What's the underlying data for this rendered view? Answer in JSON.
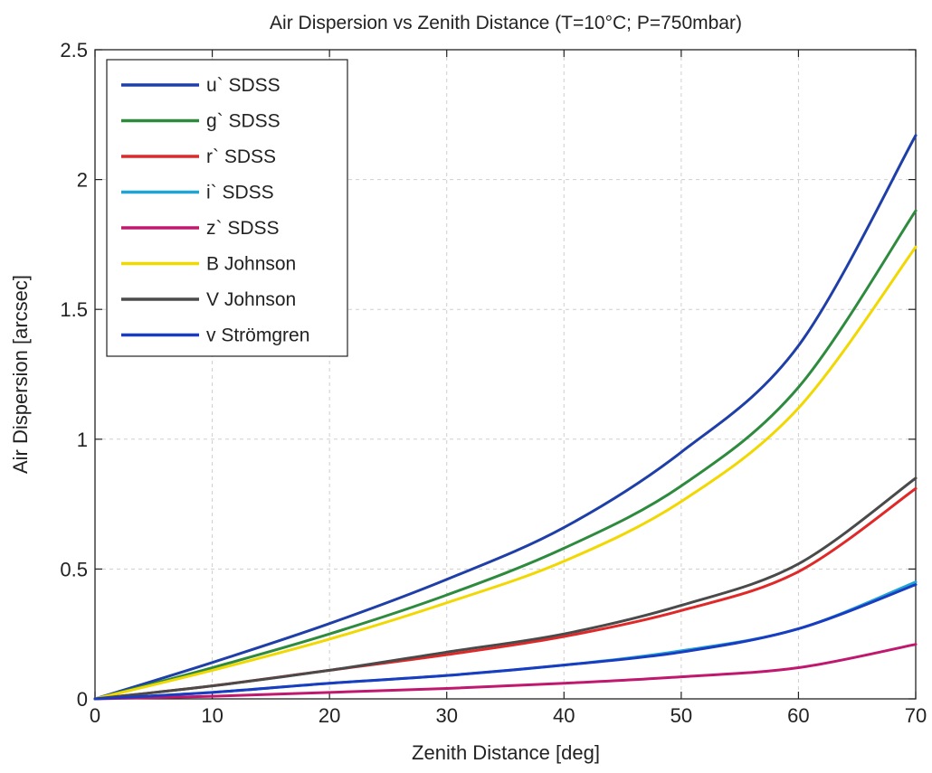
{
  "chart_data": {
    "type": "line",
    "title": "Air Dispersion vs Zenith Distance (T=10°C; P=750mbar)",
    "xlabel": "Zenith Distance [deg]",
    "ylabel": "Air Dispersion [arcsec]",
    "xlim": [
      0,
      70
    ],
    "ylim": [
      0,
      2.5
    ],
    "xticks": [
      0,
      10,
      20,
      30,
      40,
      50,
      60,
      70
    ],
    "yticks": [
      0,
      0.5,
      1,
      1.5,
      2,
      2.5
    ],
    "xtick_labels": [
      "0",
      "10",
      "20",
      "30",
      "40",
      "50",
      "60",
      "70"
    ],
    "ytick_labels": [
      "0",
      "0.5",
      "1",
      "1.5",
      "2",
      "2.5"
    ],
    "grid": true,
    "legend_position": "top-left",
    "x": [
      0,
      10,
      20,
      30,
      40,
      50,
      60,
      70
    ],
    "series": [
      {
        "name": "u` SDSS",
        "color": "#1f3fa8",
        "values": [
          0,
          0.14,
          0.29,
          0.46,
          0.66,
          0.95,
          1.36,
          2.17
        ]
      },
      {
        "name": "g` SDSS",
        "color": "#2e8b3e",
        "values": [
          0,
          0.12,
          0.25,
          0.4,
          0.58,
          0.82,
          1.2,
          1.88
        ]
      },
      {
        "name": "r` SDSS",
        "color": "#e02828",
        "values": [
          0,
          0.05,
          0.11,
          0.17,
          0.24,
          0.34,
          0.49,
          0.81
        ]
      },
      {
        "name": "i` SDSS",
        "color": "#1fa4d4",
        "values": [
          0,
          0.025,
          0.06,
          0.09,
          0.13,
          0.185,
          0.27,
          0.45
        ]
      },
      {
        "name": "z` SDSS",
        "color": "#c0186e",
        "values": [
          0,
          0.01,
          0.025,
          0.04,
          0.06,
          0.085,
          0.12,
          0.21
        ]
      },
      {
        "name": "B Johnson",
        "color": "#f0d800",
        "values": [
          0,
          0.11,
          0.23,
          0.37,
          0.53,
          0.76,
          1.12,
          1.74
        ]
      },
      {
        "name": "V Johnson",
        "color": "#4a4a4a",
        "values": [
          0,
          0.05,
          0.11,
          0.18,
          0.25,
          0.36,
          0.52,
          0.85
        ]
      },
      {
        "name": "v Strömgren",
        "color": "#1a3cc0",
        "values": [
          0,
          0.025,
          0.06,
          0.09,
          0.13,
          0.18,
          0.27,
          0.44
        ]
      }
    ]
  }
}
